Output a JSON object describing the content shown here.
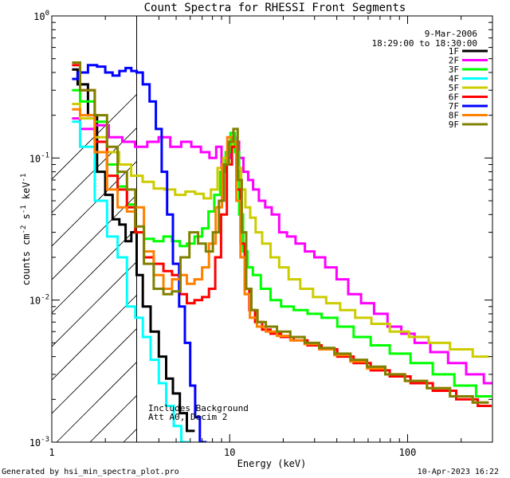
{
  "chart_data": {
    "type": "line",
    "title": "Count Spectra for RHESSI Front Segments",
    "xlabel": "Energy (keV)",
    "ylabel_parts": [
      "counts cm",
      "-2",
      " s",
      "-1",
      " keV",
      "-1"
    ],
    "xscale": "log",
    "yscale": "log",
    "xlim": [
      1,
      300
    ],
    "ylim": [
      0.001,
      1
    ],
    "x_ticks": [
      {
        "value": 1,
        "label": "1"
      },
      {
        "value": 10,
        "label": "10"
      },
      {
        "value": 100,
        "label": "100"
      }
    ],
    "y_ticks": [
      {
        "value": 1,
        "base": "10",
        "exp": "0"
      },
      {
        "value": 0.1,
        "base": "10",
        "exp": "-1"
      },
      {
        "value": 0.01,
        "base": "10",
        "exp": "-2"
      },
      {
        "value": 0.001,
        "base": "10",
        "exp": "-3"
      }
    ],
    "date": "9-Mar-2006",
    "time_range": "18:29:00 to 18:30:00",
    "annotation": [
      "Includes Background",
      "Att A0, Decim 2"
    ],
    "hatched_region_max_energy": 3,
    "series": [
      {
        "name": "1F",
        "color": "#000000",
        "points": [
          [
            1.3,
            0.42
          ],
          [
            1.5,
            0.33
          ],
          [
            1.7,
            0.2
          ],
          [
            1.9,
            0.08
          ],
          [
            2.1,
            0.055
          ],
          [
            2.3,
            0.037
          ],
          [
            2.5,
            0.034
          ],
          [
            2.7,
            0.026
          ],
          [
            2.9,
            0.03
          ],
          [
            3.1,
            0.015
          ],
          [
            3.4,
            0.009
          ],
          [
            3.8,
            0.006
          ],
          [
            4.2,
            0.004
          ],
          [
            4.6,
            0.0028
          ],
          [
            5.0,
            0.0022
          ],
          [
            5.5,
            0.0016
          ],
          [
            6.0,
            0.0012
          ]
        ]
      },
      {
        "name": "2F",
        "color": "#ff00ff",
        "points": [
          [
            1.3,
            0.19
          ],
          [
            1.6,
            0.16
          ],
          [
            1.9,
            0.17
          ],
          [
            2.3,
            0.14
          ],
          [
            2.7,
            0.13
          ],
          [
            3.2,
            0.12
          ],
          [
            3.7,
            0.13
          ],
          [
            4.3,
            0.14
          ],
          [
            5.0,
            0.12
          ],
          [
            5.7,
            0.13
          ],
          [
            6.5,
            0.12
          ],
          [
            7.3,
            0.11
          ],
          [
            8.1,
            0.1
          ],
          [
            8.7,
            0.12
          ],
          [
            9.3,
            0.085
          ],
          [
            9.9,
            0.1
          ],
          [
            10.5,
            0.14
          ],
          [
            11.0,
            0.13
          ],
          [
            11.6,
            0.1
          ],
          [
            12.3,
            0.08
          ],
          [
            13.1,
            0.07
          ],
          [
            14.0,
            0.06
          ],
          [
            15.2,
            0.05
          ],
          [
            16.5,
            0.045
          ],
          [
            18.0,
            0.04
          ],
          [
            20.0,
            0.03
          ],
          [
            22.0,
            0.028
          ],
          [
            25.0,
            0.025
          ],
          [
            28.0,
            0.022
          ],
          [
            32.0,
            0.02
          ],
          [
            37.0,
            0.017
          ],
          [
            43.0,
            0.014
          ],
          [
            50.0,
            0.011
          ],
          [
            60.0,
            0.0095
          ],
          [
            70.0,
            0.008
          ],
          [
            85.0,
            0.0065
          ],
          [
            100.0,
            0.0058
          ],
          [
            120.0,
            0.005
          ],
          [
            150.0,
            0.0043
          ],
          [
            190.0,
            0.0036
          ],
          [
            240.0,
            0.003
          ],
          [
            300.0,
            0.0026
          ]
        ]
      },
      {
        "name": "3F",
        "color": "#00ff00",
        "points": [
          [
            1.3,
            0.3
          ],
          [
            1.6,
            0.25
          ],
          [
            1.9,
            0.18
          ],
          [
            2.2,
            0.09
          ],
          [
            2.5,
            0.063
          ],
          [
            2.8,
            0.047
          ],
          [
            3.1,
            0.03
          ],
          [
            3.5,
            0.027
          ],
          [
            4.0,
            0.026
          ],
          [
            4.5,
            0.028
          ],
          [
            5.0,
            0.026
          ],
          [
            5.5,
            0.024
          ],
          [
            6.0,
            0.025
          ],
          [
            6.7,
            0.028
          ],
          [
            7.3,
            0.032
          ],
          [
            7.9,
            0.042
          ],
          [
            8.5,
            0.055
          ],
          [
            9.2,
            0.08
          ],
          [
            9.8,
            0.11
          ],
          [
            10.4,
            0.15
          ],
          [
            11.0,
            0.11
          ],
          [
            11.6,
            0.04
          ],
          [
            12.2,
            0.022
          ],
          [
            13.0,
            0.017
          ],
          [
            14.0,
            0.015
          ],
          [
            16.0,
            0.012
          ],
          [
            18.0,
            0.01
          ],
          [
            21.0,
            0.009
          ],
          [
            25.0,
            0.0085
          ],
          [
            30.0,
            0.008
          ],
          [
            36.0,
            0.0075
          ],
          [
            45.0,
            0.0065
          ],
          [
            55.0,
            0.0055
          ],
          [
            70.0,
            0.0048
          ],
          [
            90.0,
            0.0042
          ],
          [
            120.0,
            0.0036
          ],
          [
            160.0,
            0.003
          ],
          [
            210.0,
            0.0025
          ],
          [
            280.0,
            0.0021
          ]
        ]
      },
      {
        "name": "4F",
        "color": "#00ffff",
        "points": [
          [
            1.3,
            0.18
          ],
          [
            1.6,
            0.12
          ],
          [
            1.9,
            0.05
          ],
          [
            2.2,
            0.028
          ],
          [
            2.5,
            0.02
          ],
          [
            2.8,
            0.009
          ],
          [
            3.1,
            0.0075
          ],
          [
            3.4,
            0.0055
          ],
          [
            3.8,
            0.0038
          ],
          [
            4.2,
            0.0026
          ],
          [
            4.6,
            0.0018
          ],
          [
            5.1,
            0.0013
          ],
          [
            5.6,
            0.001
          ]
        ]
      },
      {
        "name": "5F",
        "color": "#cccc00",
        "points": [
          [
            1.3,
            0.24
          ],
          [
            1.6,
            0.19
          ],
          [
            1.9,
            0.14
          ],
          [
            2.2,
            0.11
          ],
          [
            2.6,
            0.09
          ],
          [
            3.0,
            0.075
          ],
          [
            3.5,
            0.068
          ],
          [
            4.0,
            0.061
          ],
          [
            4.6,
            0.06
          ],
          [
            5.3,
            0.055
          ],
          [
            6.0,
            0.058
          ],
          [
            6.8,
            0.056
          ],
          [
            7.5,
            0.052
          ],
          [
            8.2,
            0.06
          ],
          [
            8.9,
            0.085
          ],
          [
            9.5,
            0.1
          ],
          [
            10.1,
            0.12
          ],
          [
            10.7,
            0.13
          ],
          [
            11.3,
            0.085
          ],
          [
            11.9,
            0.06
          ],
          [
            12.6,
            0.045
          ],
          [
            13.5,
            0.038
          ],
          [
            14.5,
            0.03
          ],
          [
            16.0,
            0.025
          ],
          [
            18.0,
            0.02
          ],
          [
            20.0,
            0.017
          ],
          [
            23.0,
            0.014
          ],
          [
            27.0,
            0.012
          ],
          [
            32.0,
            0.0105
          ],
          [
            38.0,
            0.0095
          ],
          [
            46.0,
            0.0085
          ],
          [
            56.0,
            0.0075
          ],
          [
            70.0,
            0.0068
          ],
          [
            90.0,
            0.006
          ],
          [
            115.0,
            0.0055
          ],
          [
            150.0,
            0.005
          ],
          [
            200.0,
            0.0045
          ],
          [
            270.0,
            0.004
          ]
        ]
      },
      {
        "name": "6F",
        "color": "#ff0000",
        "points": [
          [
            1.3,
            0.45
          ],
          [
            1.6,
            0.3
          ],
          [
            1.9,
            0.13
          ],
          [
            2.2,
            0.075
          ],
          [
            2.5,
            0.06
          ],
          [
            2.8,
            0.045
          ],
          [
            3.1,
            0.03
          ],
          [
            3.5,
            0.02
          ],
          [
            4.0,
            0.018
          ],
          [
            4.5,
            0.016
          ],
          [
            5.0,
            0.015
          ],
          [
            5.5,
            0.011
          ],
          [
            6.0,
            0.0095
          ],
          [
            6.7,
            0.01
          ],
          [
            7.3,
            0.0105
          ],
          [
            8.0,
            0.012
          ],
          [
            8.6,
            0.02
          ],
          [
            9.3,
            0.04
          ],
          [
            10.0,
            0.09
          ],
          [
            10.6,
            0.12
          ],
          [
            11.2,
            0.06
          ],
          [
            11.8,
            0.025
          ],
          [
            12.5,
            0.012
          ],
          [
            13.3,
            0.0085
          ],
          [
            14.5,
            0.007
          ],
          [
            16.0,
            0.0062
          ],
          [
            18.0,
            0.0058
          ],
          [
            21.0,
            0.0055
          ],
          [
            25.0,
            0.0052
          ],
          [
            30.0,
            0.0048
          ],
          [
            36.0,
            0.0045
          ],
          [
            45.0,
            0.004
          ],
          [
            55.0,
            0.0036
          ],
          [
            70.0,
            0.0032
          ],
          [
            90.0,
            0.0029
          ],
          [
            120.0,
            0.0026
          ],
          [
            160.0,
            0.0023
          ],
          [
            220.0,
            0.002
          ],
          [
            280.0,
            0.0018
          ]
        ]
      },
      {
        "name": "7F",
        "color": "#0000ff",
        "points": [
          [
            1.3,
            0.36
          ],
          [
            1.5,
            0.4
          ],
          [
            1.7,
            0.45
          ],
          [
            1.9,
            0.44
          ],
          [
            2.1,
            0.4
          ],
          [
            2.3,
            0.38
          ],
          [
            2.5,
            0.41
          ],
          [
            2.7,
            0.43
          ],
          [
            2.9,
            0.41
          ],
          [
            3.1,
            0.4
          ],
          [
            3.4,
            0.33
          ],
          [
            3.7,
            0.25
          ],
          [
            4.0,
            0.16
          ],
          [
            4.3,
            0.08
          ],
          [
            4.6,
            0.04
          ],
          [
            5.0,
            0.018
          ],
          [
            5.4,
            0.009
          ],
          [
            5.8,
            0.005
          ],
          [
            6.2,
            0.0025
          ],
          [
            6.6,
            0.0015
          ],
          [
            7.0,
            0.001
          ]
        ]
      },
      {
        "name": "8F",
        "color": "#ff8000",
        "points": [
          [
            1.3,
            0.22
          ],
          [
            1.6,
            0.2
          ],
          [
            1.9,
            0.11
          ],
          [
            2.2,
            0.06
          ],
          [
            2.5,
            0.045
          ],
          [
            2.8,
            0.042
          ],
          [
            3.1,
            0.045
          ],
          [
            3.5,
            0.022
          ],
          [
            4.0,
            0.015
          ],
          [
            4.5,
            0.012
          ],
          [
            5.0,
            0.014
          ],
          [
            5.5,
            0.015
          ],
          [
            6.0,
            0.013
          ],
          [
            6.7,
            0.014
          ],
          [
            7.3,
            0.017
          ],
          [
            8.0,
            0.025
          ],
          [
            8.7,
            0.045
          ],
          [
            9.4,
            0.09
          ],
          [
            10.0,
            0.14
          ],
          [
            10.6,
            0.13
          ],
          [
            11.2,
            0.05
          ],
          [
            11.8,
            0.02
          ],
          [
            12.5,
            0.011
          ],
          [
            13.5,
            0.0075
          ],
          [
            15.0,
            0.0065
          ],
          [
            17.0,
            0.006
          ],
          [
            20.0,
            0.0056
          ],
          [
            24.0,
            0.0052
          ],
          [
            29.0,
            0.0049
          ],
          [
            35.0,
            0.0045
          ],
          [
            43.0,
            0.0041
          ],
          [
            53.0,
            0.0037
          ],
          [
            66.0,
            0.0033
          ],
          [
            85.0,
            0.003
          ],
          [
            110.0,
            0.0027
          ],
          [
            150.0,
            0.0024
          ],
          [
            200.0,
            0.0021
          ],
          [
            270.0,
            0.0019
          ]
        ]
      },
      {
        "name": "9F",
        "color": "#808000",
        "points": [
          [
            1.3,
            0.47
          ],
          [
            1.6,
            0.3
          ],
          [
            1.9,
            0.2
          ],
          [
            2.2,
            0.12
          ],
          [
            2.5,
            0.08
          ],
          [
            2.8,
            0.06
          ],
          [
            3.1,
            0.033
          ],
          [
            3.5,
            0.018
          ],
          [
            4.0,
            0.012
          ],
          [
            4.5,
            0.011
          ],
          [
            5.0,
            0.0115
          ],
          [
            5.6,
            0.02
          ],
          [
            6.3,
            0.03
          ],
          [
            7.0,
            0.025
          ],
          [
            7.7,
            0.022
          ],
          [
            8.4,
            0.03
          ],
          [
            9.0,
            0.05
          ],
          [
            9.6,
            0.09
          ],
          [
            10.2,
            0.13
          ],
          [
            10.8,
            0.16
          ],
          [
            11.4,
            0.07
          ],
          [
            12.0,
            0.03
          ],
          [
            12.8,
            0.012
          ],
          [
            13.7,
            0.0085
          ],
          [
            15.0,
            0.007
          ],
          [
            17.0,
            0.0065
          ],
          [
            20.0,
            0.006
          ],
          [
            24.0,
            0.0055
          ],
          [
            29.0,
            0.005
          ],
          [
            35.0,
            0.0046
          ],
          [
            43.0,
            0.0042
          ],
          [
            53.0,
            0.0038
          ],
          [
            66.0,
            0.0034
          ],
          [
            85.0,
            0.003
          ],
          [
            110.0,
            0.0027
          ],
          [
            150.0,
            0.0024
          ],
          [
            200.0,
            0.0021
          ],
          [
            270.0,
            0.0019
          ]
        ]
      }
    ]
  },
  "footer": {
    "generated_by": "Generated by hsi_min_spectra_plot.pro",
    "timestamp": "10-Apr-2023 16:22"
  }
}
